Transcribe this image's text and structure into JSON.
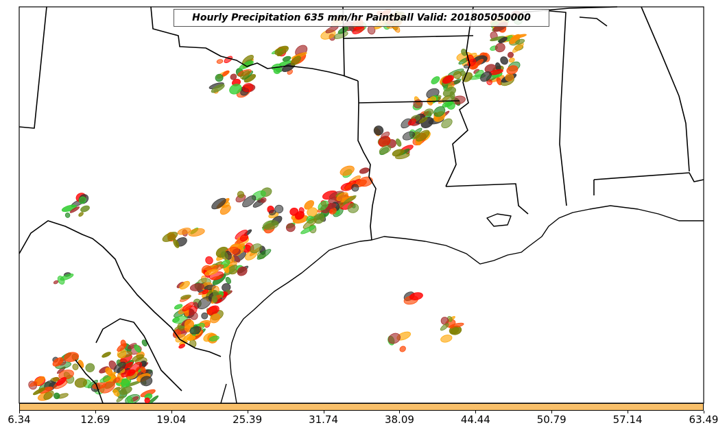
{
  "title": "Hourly Precipitation 635 mm/hr Paintball Valid: 201805050000",
  "colorbar": {
    "color": "#f9c06a",
    "ticks": [
      "6.34",
      "12.69",
      "19.04",
      "25.39",
      "31.74",
      "38.09",
      "44.44",
      "50.79",
      "57.14",
      "63.49"
    ]
  },
  "member_colors": [
    "#ff0000",
    "#ff8c00",
    "#ffa500",
    "#808000",
    "#228b22",
    "#32cd32",
    "#a52a2a",
    "#ff4500",
    "#6b8e23",
    "#333333"
  ]
}
